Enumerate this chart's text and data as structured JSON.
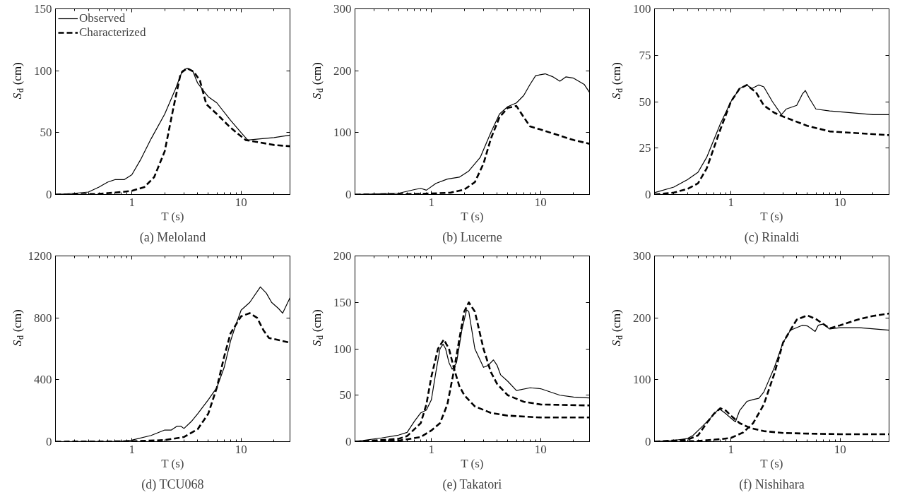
{
  "chart_data": [
    {
      "type": "line",
      "title": "(a) Meloland",
      "xlabel": "T (s)",
      "ylabel": "S$_{d}$ (cm)",
      "log": "x",
      "grid": false,
      "legend": "top left",
      "xlim": [
        0.2,
        28
      ],
      "ylim": [
        0,
        150
      ],
      "yticks": [
        0,
        50,
        100,
        150
      ],
      "xticks": [
        {
          "value": 0.2,
          "label": null
        },
        {
          "value": 0.3,
          "label": null
        },
        {
          "value": 0.4,
          "label": null
        },
        {
          "value": 0.5,
          "label": null
        },
        {
          "value": 0.6,
          "label": null
        },
        {
          "value": 0.7,
          "label": null
        },
        {
          "value": 0.8,
          "label": null
        },
        {
          "value": 0.9,
          "label": null
        },
        1,
        {
          "value": 2,
          "label": null
        },
        {
          "value": 3,
          "label": null
        },
        {
          "value": 4,
          "label": null
        },
        {
          "value": 5,
          "label": null
        },
        {
          "value": 6,
          "label": null
        },
        {
          "value": 7,
          "label": null
        },
        {
          "value": 8,
          "label": null
        },
        {
          "value": 9,
          "label": null
        },
        10,
        {
          "value": 20,
          "label": null
        }
      ],
      "series": [
        {
          "name": "Observed",
          "color": "#000000",
          "line_style": "solid",
          "x": [
            0.2,
            0.3,
            0.4,
            0.5,
            0.6,
            0.7,
            0.85,
            1.0,
            1.2,
            1.5,
            2.0,
            2.5,
            2.9,
            3.2,
            3.6,
            4.0,
            4.5,
            5.0,
            6,
            8,
            10,
            11.5,
            15,
            20,
            28
          ],
          "values": [
            0,
            1,
            2,
            6,
            10,
            12,
            12,
            16,
            28,
            45,
            65,
            85,
            100,
            102,
            100,
            90,
            84,
            79,
            74,
            60,
            50,
            44,
            45,
            46,
            48
          ]
        },
        {
          "name": "Characterized",
          "color": "#000000",
          "line_style": "dashed",
          "x": [
            0.2,
            0.5,
            0.8,
            1.0,
            1.3,
            1.6,
            2.0,
            2.4,
            2.8,
            3.2,
            3.7,
            4.2,
            4.8,
            6,
            8,
            11,
            15,
            20,
            28
          ],
          "values": [
            0,
            0.5,
            2,
            3,
            6,
            14,
            35,
            70,
            98,
            102,
            99,
            92,
            73,
            65,
            54,
            44,
            42,
            40,
            39
          ]
        }
      ]
    },
    {
      "type": "line",
      "title": "(b) Lucerne",
      "xlabel": "T (s)",
      "ylabel": "S$_{d}$ (cm)",
      "log": "x",
      "grid": false,
      "xlim": [
        0.2,
        28
      ],
      "ylim": [
        0,
        300
      ],
      "yticks": [
        0,
        100,
        200,
        300
      ],
      "xticks": [
        {
          "value": 0.2,
          "label": null
        },
        {
          "value": 0.3,
          "label": null
        },
        {
          "value": 0.4,
          "label": null
        },
        {
          "value": 0.5,
          "label": null
        },
        {
          "value": 0.6,
          "label": null
        },
        {
          "value": 0.7,
          "label": null
        },
        {
          "value": 0.8,
          "label": null
        },
        {
          "value": 0.9,
          "label": null
        },
        1,
        {
          "value": 2,
          "label": null
        },
        {
          "value": 3,
          "label": null
        },
        {
          "value": 4,
          "label": null
        },
        {
          "value": 5,
          "label": null
        },
        {
          "value": 6,
          "label": null
        },
        {
          "value": 7,
          "label": null
        },
        {
          "value": 8,
          "label": null
        },
        {
          "value": 9,
          "label": null
        },
        10,
        {
          "value": 20,
          "label": null
        }
      ],
      "series": [
        {
          "color": "#000000",
          "line_style": "solid",
          "x": [
            0.2,
            0.5,
            0.7,
            0.8,
            0.9,
            1.1,
            1.4,
            1.8,
            2.2,
            2.8,
            3.5,
            4.2,
            5,
            6,
            7,
            8,
            9,
            11,
            13,
            15,
            17,
            20,
            25,
            28
          ],
          "values": [
            0,
            2,
            8,
            10,
            7,
            18,
            25,
            28,
            38,
            60,
            100,
            130,
            142,
            148,
            160,
            178,
            192,
            195,
            190,
            183,
            190,
            188,
            178,
            165
          ]
        },
        {
          "color": "#000000",
          "line_style": "dashed",
          "x": [
            0.2,
            0.8,
            1.5,
            2,
            2.5,
            3,
            3.5,
            4.2,
            5,
            6,
            7,
            8,
            10,
            15,
            20,
            28
          ],
          "values": [
            0,
            1,
            3,
            8,
            20,
            50,
            90,
            125,
            140,
            143,
            125,
            110,
            105,
            95,
            88,
            82
          ]
        }
      ]
    },
    {
      "type": "line",
      "title": "(c) Rinaldi",
      "xlabel": "T (s)",
      "ylabel": "S$_{d}$ (cm)",
      "log": "x",
      "grid": false,
      "xlim": [
        0.2,
        28
      ],
      "ylim": [
        0,
        100
      ],
      "yticks": [
        0,
        25,
        50,
        75,
        100
      ],
      "xticks": [
        {
          "value": 0.2,
          "label": null
        },
        {
          "value": 0.3,
          "label": null
        },
        {
          "value": 0.4,
          "label": null
        },
        {
          "value": 0.5,
          "label": null
        },
        {
          "value": 0.6,
          "label": null
        },
        {
          "value": 0.7,
          "label": null
        },
        {
          "value": 0.8,
          "label": null
        },
        {
          "value": 0.9,
          "label": null
        },
        1,
        {
          "value": 2,
          "label": null
        },
        {
          "value": 3,
          "label": null
        },
        {
          "value": 4,
          "label": null
        },
        {
          "value": 5,
          "label": null
        },
        {
          "value": 6,
          "label": null
        },
        {
          "value": 7,
          "label": null
        },
        {
          "value": 8,
          "label": null
        },
        {
          "value": 9,
          "label": null
        },
        10,
        {
          "value": 20,
          "label": null
        }
      ],
      "series": [
        {
          "color": "#000000",
          "line_style": "solid",
          "x": [
            0.2,
            0.3,
            0.4,
            0.5,
            0.6,
            0.8,
            1.0,
            1.2,
            1.4,
            1.55,
            1.8,
            2.0,
            2.4,
            2.9,
            3.2,
            4,
            4.5,
            4.8,
            5.2,
            6,
            8,
            10,
            20,
            28
          ],
          "values": [
            1,
            4,
            8,
            12,
            20,
            38,
            50,
            57,
            59,
            57,
            59,
            58,
            50,
            43,
            46,
            48,
            54,
            56,
            52,
            46,
            45,
            44.5,
            43,
            43
          ]
        },
        {
          "color": "#000000",
          "line_style": "dashed",
          "x": [
            0.2,
            0.3,
            0.4,
            0.5,
            0.6,
            0.8,
            1.0,
            1.2,
            1.4,
            1.7,
            2,
            2.5,
            3,
            5,
            8,
            15,
            28
          ],
          "values": [
            0,
            1,
            3,
            6,
            14,
            35,
            50,
            57,
            59,
            55,
            48,
            44,
            42,
            37,
            34,
            33,
            32
          ]
        }
      ]
    },
    {
      "type": "line",
      "title": "(d) TCU068",
      "xlabel": "T (s)",
      "ylabel": "S$_{d}$ (cm)",
      "log": "x",
      "grid": false,
      "xlim": [
        0.2,
        28
      ],
      "ylim": [
        0,
        1200
      ],
      "yticks": [
        0,
        400,
        800,
        1200
      ],
      "xticks": [
        {
          "value": 0.2,
          "label": null
        },
        {
          "value": 0.3,
          "label": null
        },
        {
          "value": 0.4,
          "label": null
        },
        {
          "value": 0.5,
          "label": null
        },
        {
          "value": 0.6,
          "label": null
        },
        {
          "value": 0.7,
          "label": null
        },
        {
          "value": 0.8,
          "label": null
        },
        {
          "value": 0.9,
          "label": null
        },
        1,
        {
          "value": 2,
          "label": null
        },
        {
          "value": 3,
          "label": null
        },
        {
          "value": 4,
          "label": null
        },
        {
          "value": 5,
          "label": null
        },
        {
          "value": 6,
          "label": null
        },
        {
          "value": 7,
          "label": null
        },
        {
          "value": 8,
          "label": null
        },
        {
          "value": 9,
          "label": null
        },
        10,
        {
          "value": 20,
          "label": null
        }
      ],
      "series": [
        {
          "color": "#000000",
          "line_style": "solid",
          "x": [
            0.2,
            0.8,
            1.0,
            1.5,
            2,
            2.3,
            2.6,
            2.8,
            3,
            3.5,
            4,
            5,
            6,
            7,
            8,
            9,
            10,
            12,
            15,
            17,
            19,
            22,
            24,
            28
          ],
          "values": [
            0,
            2,
            10,
            40,
            75,
            75,
            100,
            100,
            85,
            130,
            180,
            270,
            350,
            480,
            650,
            760,
            850,
            900,
            1000,
            960,
            900,
            860,
            830,
            930
          ]
        },
        {
          "color": "#000000",
          "line_style": "dashed",
          "x": [
            0.2,
            1,
            2,
            3,
            4,
            5,
            6,
            7,
            8,
            10,
            12,
            14,
            16,
            18,
            28
          ],
          "values": [
            0,
            2,
            10,
            30,
            80,
            180,
            350,
            550,
            700,
            810,
            830,
            800,
            720,
            670,
            640
          ]
        }
      ]
    },
    {
      "type": "line",
      "title": "(e) Takatori",
      "xlabel": "T (s)",
      "ylabel": "S$_{d}$ (cm)",
      "log": "x",
      "grid": false,
      "xlim": [
        0.2,
        28
      ],
      "ylim": [
        0,
        200
      ],
      "yticks": [
        0,
        50,
        100,
        150,
        200
      ],
      "xticks": [
        {
          "value": 0.2,
          "label": null
        },
        {
          "value": 0.3,
          "label": null
        },
        {
          "value": 0.4,
          "label": null
        },
        {
          "value": 0.5,
          "label": null
        },
        {
          "value": 0.6,
          "label": null
        },
        {
          "value": 0.7,
          "label": null
        },
        {
          "value": 0.8,
          "label": null
        },
        {
          "value": 0.9,
          "label": null
        },
        1,
        {
          "value": 2,
          "label": null
        },
        {
          "value": 3,
          "label": null
        },
        {
          "value": 4,
          "label": null
        },
        {
          "value": 5,
          "label": null
        },
        {
          "value": 6,
          "label": null
        },
        {
          "value": 7,
          "label": null
        },
        {
          "value": 8,
          "label": null
        },
        {
          "value": 9,
          "label": null
        },
        10,
        {
          "value": 20,
          "label": null
        }
      ],
      "series": [
        {
          "color": "#000000",
          "line_style": "solid",
          "x": [
            0.2,
            0.35,
            0.5,
            0.6,
            0.7,
            0.8,
            0.9,
            1.0,
            1.1,
            1.2,
            1.28,
            1.35,
            1.45,
            1.55,
            1.7,
            1.9,
            2.1,
            2.2,
            2.5,
            3,
            3.3,
            3.7,
            4,
            4.3,
            5,
            6,
            8,
            10,
            15,
            20,
            28
          ],
          "values": [
            0,
            4,
            7,
            10,
            22,
            31,
            34,
            45,
            75,
            100,
            105,
            100,
            85,
            78,
            85,
            120,
            142,
            140,
            100,
            80,
            82,
            88,
            82,
            72,
            65,
            55,
            58,
            57,
            50,
            48,
            47
          ]
        },
        {
          "color": "#000000",
          "line_style": "dashed",
          "x": [
            0.2,
            0.5,
            0.6,
            0.8,
            0.9,
            1.0,
            1.15,
            1.3,
            1.45,
            1.6,
            1.8,
            2.0,
            2.5,
            3.5,
            5,
            10,
            28
          ],
          "values": [
            0,
            3,
            6,
            20,
            40,
            70,
            100,
            110,
            100,
            80,
            60,
            50,
            38,
            31,
            28,
            26,
            26
          ]
        },
        {
          "color": "#000000",
          "line_style": "dashed",
          "x": [
            0.2,
            0.5,
            0.8,
            1.0,
            1.2,
            1.4,
            1.6,
            1.8,
            2.0,
            2.2,
            2.5,
            3,
            3.5,
            4,
            5,
            7,
            10,
            28
          ],
          "values": [
            0,
            1,
            5,
            12,
            20,
            40,
            75,
            110,
            140,
            150,
            140,
            100,
            75,
            62,
            50,
            43,
            40,
            39
          ]
        }
      ]
    },
    {
      "type": "line",
      "title": "(f) Nishihara",
      "xlabel": "T (s)",
      "ylabel": "S$_{d}$ (cm)",
      "log": "x",
      "grid": false,
      "xlim": [
        0.2,
        28
      ],
      "ylim": [
        0,
        300
      ],
      "yticks": [
        0,
        100,
        200,
        300
      ],
      "xticks": [
        {
          "value": 0.2,
          "label": null
        },
        {
          "value": 0.3,
          "label": null
        },
        {
          "value": 0.4,
          "label": null
        },
        {
          "value": 0.5,
          "label": null
        },
        {
          "value": 0.6,
          "label": null
        },
        {
          "value": 0.7,
          "label": null
        },
        {
          "value": 0.8,
          "label": null
        },
        {
          "value": 0.9,
          "label": null
        },
        1,
        {
          "value": 2,
          "label": null
        },
        {
          "value": 3,
          "label": null
        },
        {
          "value": 4,
          "label": null
        },
        {
          "value": 5,
          "label": null
        },
        {
          "value": 6,
          "label": null
        },
        {
          "value": 7,
          "label": null
        },
        {
          "value": 8,
          "label": null
        },
        {
          "value": 9,
          "label": null
        },
        10,
        {
          "value": 20,
          "label": null
        }
      ],
      "series": [
        {
          "color": "#000000",
          "line_style": "solid",
          "x": [
            0.2,
            0.3,
            0.4,
            0.45,
            0.55,
            0.65,
            0.75,
            0.8,
            0.9,
            1.0,
            1.1,
            1.2,
            1.4,
            1.6,
            1.8,
            2,
            2.5,
            3,
            3.5,
            4.5,
            5,
            5.5,
            5.9,
            6.3,
            7,
            8,
            10,
            15,
            28
          ],
          "values": [
            0,
            2,
            5,
            10,
            25,
            38,
            50,
            52,
            45,
            38,
            32,
            50,
            65,
            68,
            70,
            80,
            120,
            160,
            180,
            188,
            187,
            182,
            178,
            188,
            190,
            182,
            184,
            184,
            180
          ]
        },
        {
          "color": "#000000",
          "line_style": "dashed",
          "x": [
            0.2,
            0.4,
            0.5,
            0.6,
            0.7,
            0.8,
            0.9,
            1.0,
            1.2,
            1.5,
            2,
            3,
            5,
            10,
            28
          ],
          "values": [
            0,
            3,
            10,
            30,
            45,
            54,
            50,
            42,
            30,
            22,
            17,
            14,
            13,
            12,
            12
          ]
        },
        {
          "color": "#000000",
          "line_style": "dashed",
          "x": [
            0.2,
            0.5,
            0.8,
            1.0,
            1.3,
            1.6,
            2,
            2.5,
            3,
            3.5,
            4,
            5,
            6,
            7,
            8,
            10,
            15,
            20,
            28
          ],
          "values": [
            0,
            1,
            4,
            6,
            15,
            30,
            60,
            110,
            160,
            180,
            197,
            204,
            198,
            190,
            183,
            188,
            198,
            203,
            207
          ]
        }
      ]
    }
  ]
}
